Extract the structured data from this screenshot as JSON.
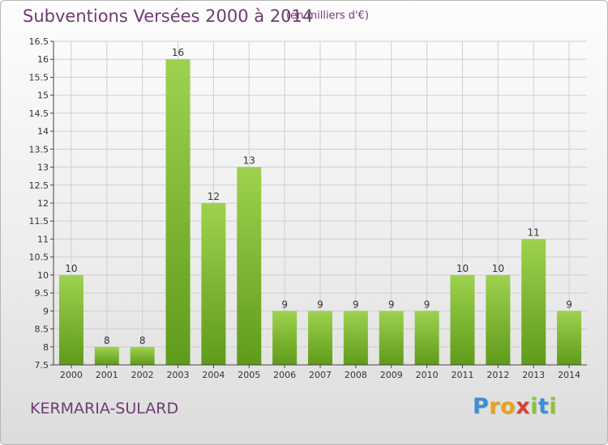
{
  "header": {
    "title": "Subventions Versées 2000 à 2014",
    "subtitle": "(en milliers d'€)"
  },
  "footer": {
    "place_name": "KERMARIA-SULARD",
    "logo_letters": [
      "P",
      "r",
      "o",
      "x",
      "i",
      "t",
      "i"
    ],
    "logo_colors": [
      "#3b8fd6",
      "#e8a21c",
      "#e8a21c",
      "#d9412f",
      "#8cc43a",
      "#3b8fd6",
      "#8cc43a"
    ]
  },
  "colors": {
    "bar_top": "#9ed24e",
    "bar_bottom": "#5f9b1a",
    "grid": "#cfcfcf",
    "axis": "#444444"
  },
  "chart_data": {
    "type": "bar",
    "title": "Subventions Versées 2000 à 2014",
    "subtitle": "(en milliers d'€)",
    "xlabel": "",
    "ylabel": "",
    "categories": [
      "2000",
      "2001",
      "2002",
      "2003",
      "2004",
      "2005",
      "2006",
      "2007",
      "2008",
      "2009",
      "2010",
      "2011",
      "2012",
      "2013",
      "2014"
    ],
    "values": [
      10,
      8,
      8,
      16,
      12,
      13,
      9,
      9,
      9,
      9,
      9,
      10,
      10,
      11,
      9
    ],
    "ylim": [
      7.5,
      16.5
    ],
    "yticks": [
      "7.5",
      "8",
      "8.5",
      "9",
      "9.5",
      "10",
      "10.5",
      "11",
      "11.5",
      "12",
      "12.5",
      "13",
      "13.5",
      "14",
      "14.5",
      "15",
      "15.5",
      "16",
      "16.5"
    ],
    "grid": true,
    "legend": "none"
  }
}
